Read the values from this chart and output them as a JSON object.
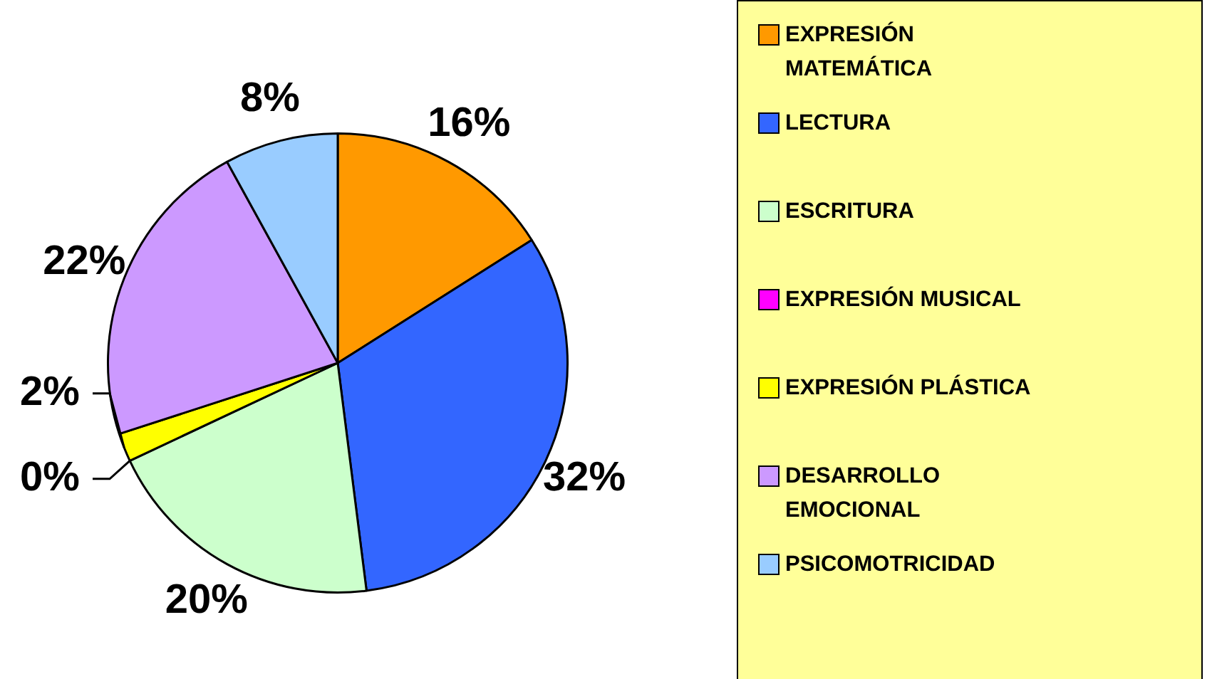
{
  "chart_data": {
    "type": "pie",
    "categories": [
      "EXPRESIÓN MATEMÁTICA",
      "LECTURA",
      "ESCRITURA",
      "EXPRESIÓN MUSICAL",
      "EXPRESIÓN PLÁSTICA",
      "DESARROLLO EMOCIONAL",
      "PSICOMOTRICIDAD"
    ],
    "values": [
      16,
      32,
      20,
      0,
      2,
      22,
      8
    ],
    "colors": [
      "#ff9900",
      "#3366ff",
      "#ccffcc",
      "#ff00ff",
      "#ffff00",
      "#cc99ff",
      "#99ccff"
    ],
    "value_labels": [
      "16%",
      "32%",
      "20%",
      "0%",
      "2%",
      "22%",
      "8%"
    ],
    "legend": "right"
  }
}
